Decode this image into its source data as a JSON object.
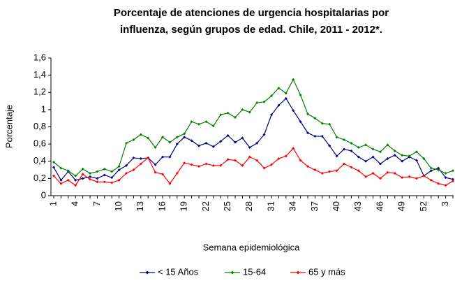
{
  "chart_data": {
    "type": "line",
    "title": [
      "Porcentaje de atenciones de urgencia hospitalarias por",
      "influenza, según grupos de edad. Chile, 2011 - 2012*."
    ],
    "x_label": "Semana epidemiológica",
    "y_label": "Porcentaje",
    "categories": [
      "1",
      null,
      null,
      "4",
      null,
      null,
      "7",
      null,
      null,
      "10",
      null,
      null,
      "13",
      null,
      null,
      "16",
      null,
      null,
      "19",
      null,
      null,
      "22",
      null,
      null,
      "25",
      null,
      null,
      "28",
      null,
      null,
      "31",
      null,
      null,
      "34",
      null,
      null,
      "37",
      null,
      null,
      "40",
      null,
      null,
      "43",
      null,
      null,
      "46",
      null,
      null,
      "49",
      null,
      null,
      "52",
      null,
      null,
      "3",
      null
    ],
    "ylim": [
      0,
      1.6
    ],
    "yticks": [
      0,
      {
        "value": 0.2,
        "label": "0,2"
      },
      {
        "value": 0.4,
        "label": "0,4"
      },
      {
        "value": 0.6,
        "label": "0,6"
      },
      {
        "value": 0.8,
        "label": "0,8"
      },
      1,
      {
        "value": 1.2,
        "label": "1,2"
      },
      {
        "value": 1.4,
        "label": "1,4"
      },
      {
        "value": 1.6,
        "label": "1,6"
      }
    ],
    "legend": "bottom",
    "series": [
      {
        "name": "< 15 Años",
        "color": "#000080",
        "values": [
          0.33,
          0.18,
          0.28,
          0.18,
          0.2,
          0.22,
          0.2,
          0.24,
          0.21,
          0.3,
          0.35,
          0.44,
          0.43,
          0.44,
          0.36,
          0.45,
          0.45,
          0.6,
          0.68,
          0.64,
          0.58,
          0.61,
          0.57,
          0.63,
          0.7,
          0.62,
          0.67,
          0.56,
          0.61,
          0.71,
          0.94,
          1.05,
          1.13,
          0.99,
          0.86,
          0.73,
          0.69,
          0.69,
          0.58,
          0.46,
          0.54,
          0.52,
          0.45,
          0.4,
          0.45,
          0.37,
          0.43,
          0.47,
          0.4,
          0.45,
          0.41,
          0.23,
          0.29,
          0.32,
          0.21,
          0.19
        ]
      },
      {
        "name": "15-64",
        "color": "#008000",
        "values": [
          0.39,
          0.32,
          0.29,
          0.23,
          0.31,
          0.26,
          0.28,
          0.31,
          0.28,
          0.34,
          0.61,
          0.65,
          0.71,
          0.67,
          0.56,
          0.68,
          0.62,
          0.68,
          0.72,
          0.86,
          0.83,
          0.86,
          0.81,
          0.94,
          0.96,
          0.91,
          1.0,
          0.97,
          1.08,
          1.09,
          1.16,
          1.25,
          1.19,
          1.35,
          1.17,
          0.95,
          0.9,
          0.84,
          0.83,
          0.68,
          0.65,
          0.61,
          0.56,
          0.59,
          0.54,
          0.51,
          0.59,
          0.52,
          0.47,
          0.46,
          0.51,
          0.43,
          0.32,
          0.3,
          0.26,
          0.29
        ]
      },
      {
        "name": "65 y más",
        "color": "#ff0000",
        "values": [
          0.23,
          0.14,
          0.18,
          0.12,
          0.25,
          0.19,
          0.16,
          0.16,
          0.15,
          0.18,
          0.26,
          0.3,
          0.37,
          0.44,
          0.27,
          0.25,
          0.14,
          0.26,
          0.38,
          0.36,
          0.34,
          0.37,
          0.35,
          0.35,
          0.42,
          0.41,
          0.35,
          0.45,
          0.41,
          0.32,
          0.36,
          0.43,
          0.46,
          0.55,
          0.41,
          0.34,
          0.3,
          0.26,
          0.28,
          0.29,
          0.37,
          0.33,
          0.29,
          0.22,
          0.26,
          0.2,
          0.27,
          0.26,
          0.21,
          0.22,
          0.2,
          0.23,
          0.18,
          0.14,
          0.12,
          0.17
        ]
      }
    ]
  }
}
